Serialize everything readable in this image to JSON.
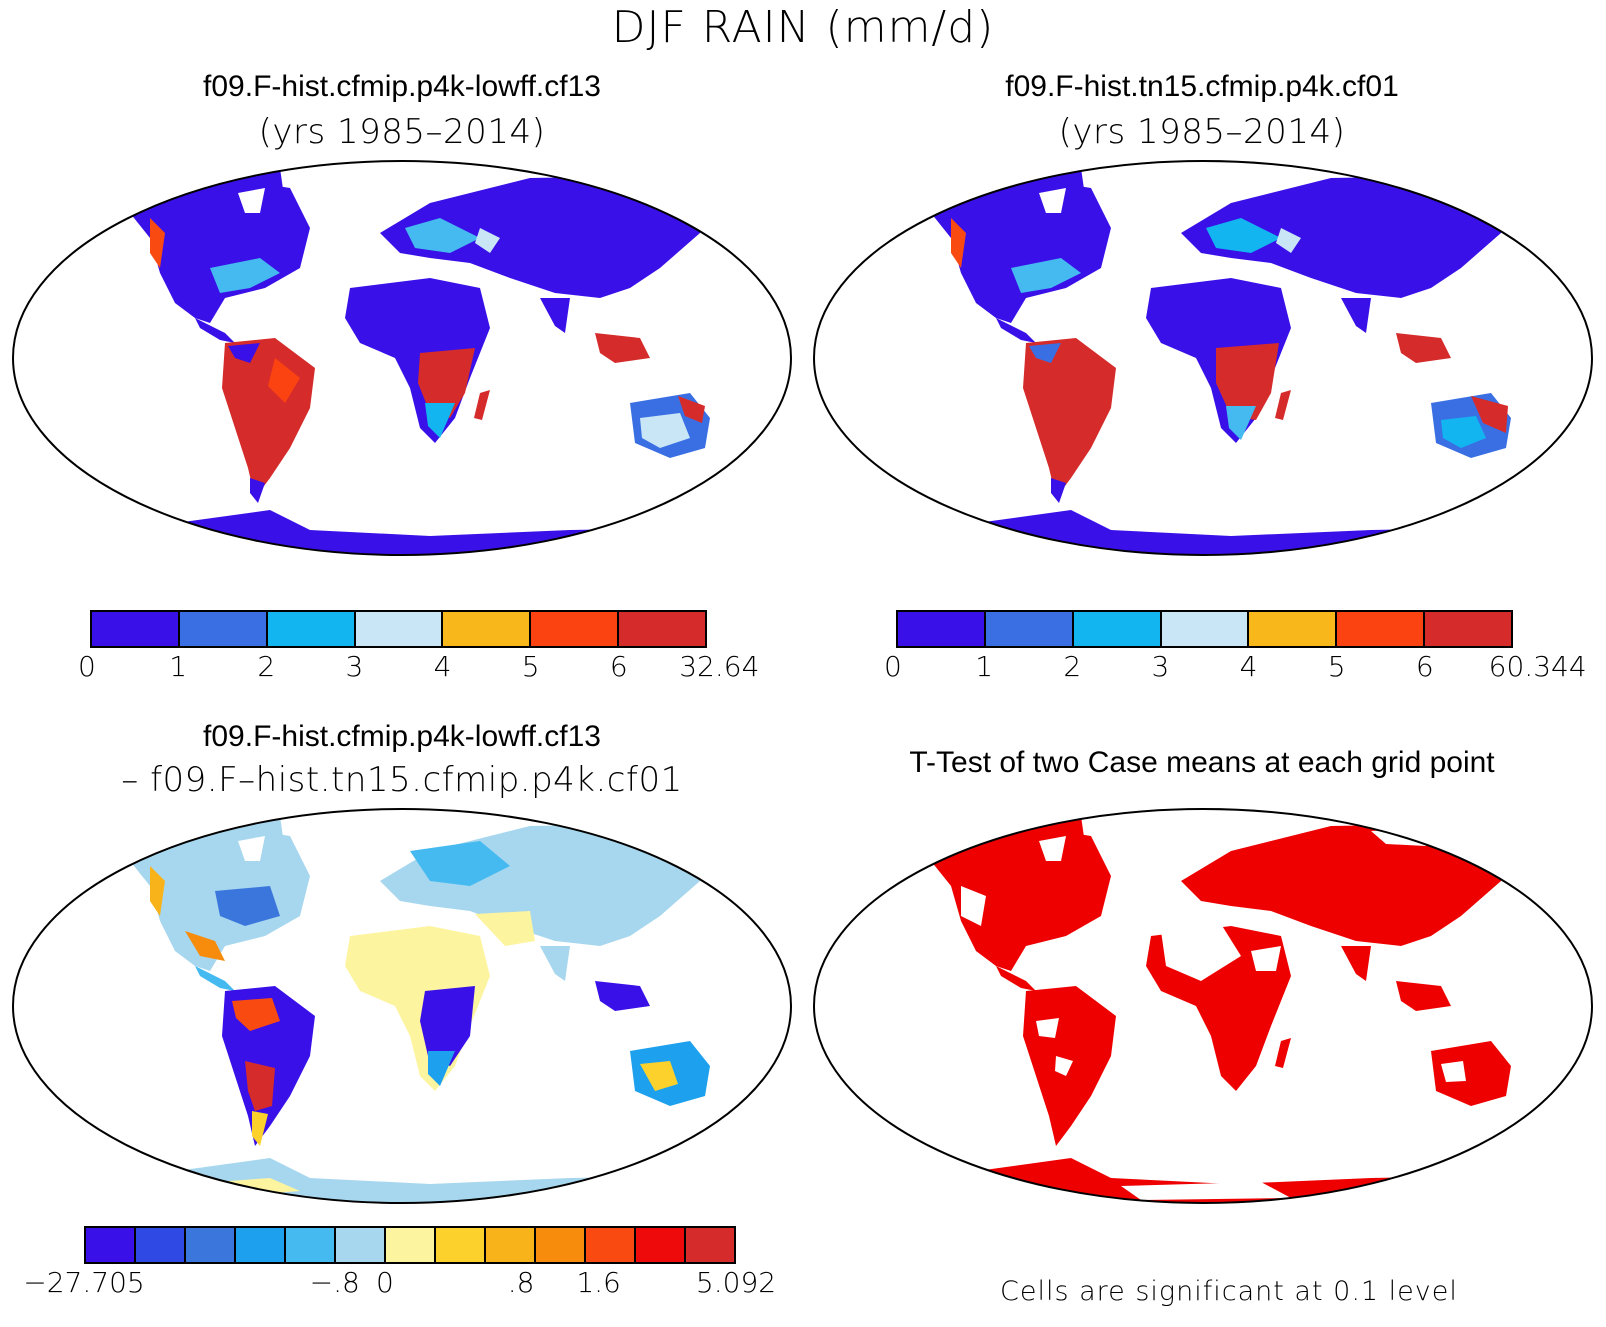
{
  "figure_title": "DJF RAIN (mm/d)",
  "panels": {
    "p1": {
      "title": "f09.F-hist.cfmip.p4k-lowff.cf13",
      "subtitle": "(yrs 1985–2014)"
    },
    "p2": {
      "title": "f09.F-hist.tn15.cfmip.p4k.cf01",
      "subtitle": "(yrs 1985–2014)"
    },
    "p3": {
      "title": "f09.F-hist.cfmip.p4k-lowff.cf13",
      "subtitle": "– f09.F–hist.tn15.cfmip.p4k.cf01"
    },
    "p4": {
      "title": "T-Test of two Case means at each grid point",
      "note": "Cells are significant at 0.1 level"
    }
  },
  "colorbars": {
    "cb1": {
      "colors": [
        "#3a10e8",
        "#3a6fe3",
        "#13b5f0",
        "#c9e6f6",
        "#f8b81b",
        "#fb4311",
        "#d62b2b"
      ],
      "labels": [
        "0",
        "1",
        "2",
        "3",
        "4",
        "5",
        "6",
        "32.64"
      ]
    },
    "cb2": {
      "colors": [
        "#3a10e8",
        "#3a6fe3",
        "#13b5f0",
        "#c9e6f6",
        "#f8b81b",
        "#fb4311",
        "#d62b2b"
      ],
      "labels": [
        "0",
        "1",
        "2",
        "3",
        "4",
        "5",
        "6",
        "60.344"
      ]
    },
    "cb3": {
      "colors": [
        "#3a10e8",
        "#2f49e4",
        "#3a76dc",
        "#1da0ee",
        "#44baf0",
        "#a7d7ee",
        "#fdf4a0",
        "#fcd12c",
        "#f9b31a",
        "#f78b0c",
        "#f94a12",
        "#ee0a0a",
        "#d62b2b"
      ],
      "labels": [
        "−27.705",
        "−.8",
        "0",
        ".8",
        "1.6",
        "5.092"
      ]
    }
  },
  "map_colors": {
    "dry": "#3a10e8",
    "wet": "#d62b2b",
    "diff_background": "#a7d7ee",
    "significant": "#ee0000"
  }
}
